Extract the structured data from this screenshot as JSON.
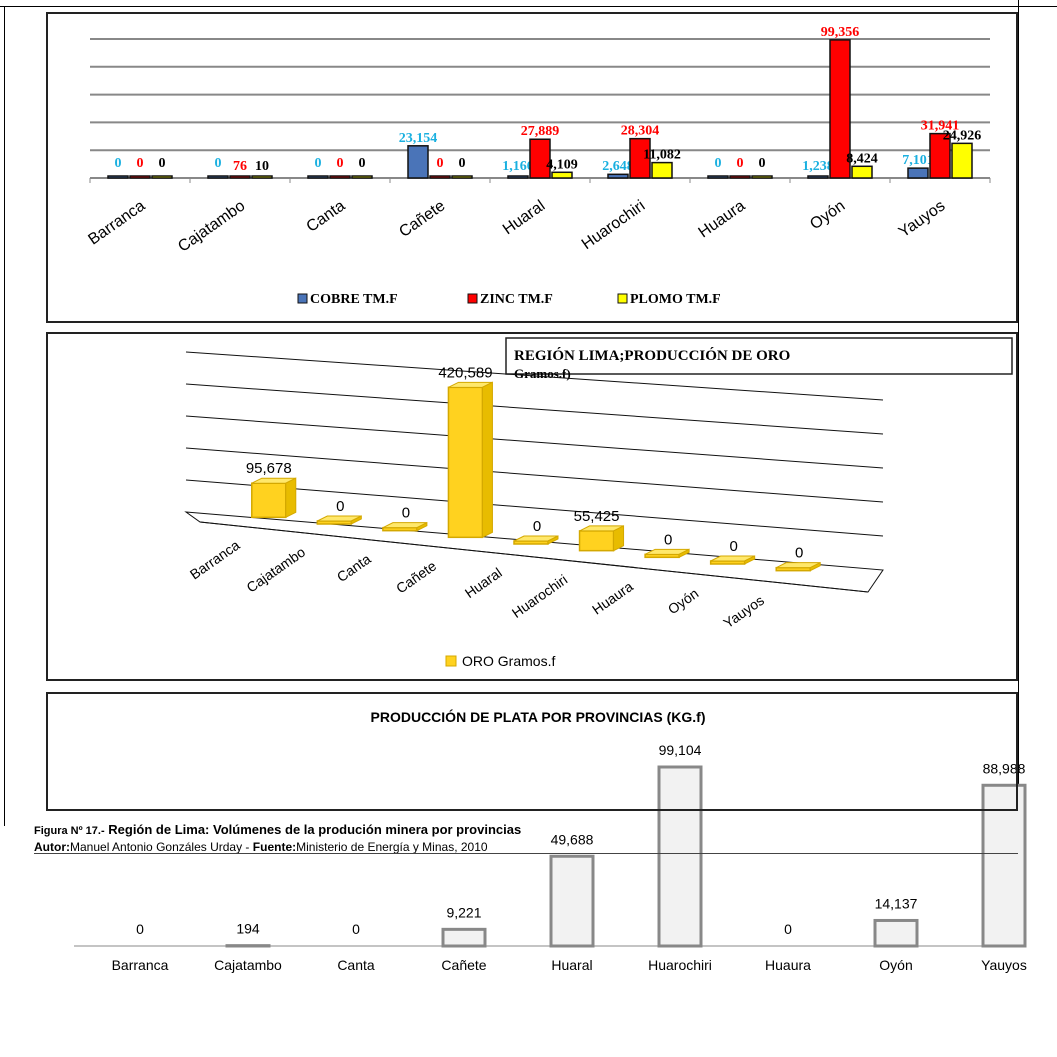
{
  "page": {
    "caption_prefix": "Figura Nº 17.-",
    "caption_title": "Región de Lima: Volúmenes de la produción minera por provincias",
    "author_label": "Autor:",
    "author_name": "Manuel Antonio Gonzáles Urday -",
    "source_label": "Fuente:",
    "source_name": "Ministerio de Energía y Minas, 2010"
  },
  "colors": {
    "cobre": "#4a74b8",
    "zinc": "#ff0000",
    "plomo": "#ffff00",
    "cobre_label": "#1ab0e0",
    "zinc_label": "#ff0000",
    "plomo_label": "#000000",
    "oro": "#ffd21f",
    "oro_dark": "#d4a800",
    "plata": "#f2f2f2",
    "plata_border": "#888888"
  },
  "chart_data": [
    {
      "type": "bar",
      "title": "",
      "categories": [
        "Barranca",
        "Cajatambo",
        "Canta",
        "Cañete",
        "Huaral",
        "Huarochiri",
        "Huaura",
        "Oyón",
        "Yauyos"
      ],
      "series": [
        {
          "name": "COBRE TM.F",
          "values": [
            0,
            0,
            0,
            23154,
            1166,
            2648,
            0,
            1238,
            7101
          ],
          "labels": [
            "0",
            "0",
            "0",
            "23,154",
            "1,166",
            "2,648",
            "0",
            "1,238",
            "7,101"
          ]
        },
        {
          "name": "ZINC TM.F",
          "values": [
            0,
            76,
            0,
            0,
            27889,
            28304,
            0,
            99356,
            31941
          ],
          "labels": [
            "0",
            "76",
            "0",
            "0",
            "27,889",
            "28,304",
            "0",
            "99,356",
            "31,941"
          ]
        },
        {
          "name": "PLOMO TM.F",
          "values": [
            0,
            10,
            0,
            0,
            4109,
            11082,
            0,
            8424,
            24926
          ],
          "labels": [
            "0",
            "10",
            "0",
            "0",
            "4,109",
            "11,082",
            "0",
            "8,424",
            "24,926"
          ]
        }
      ],
      "ylim": [
        0,
        100000
      ],
      "grid": true,
      "legend": "bottom"
    },
    {
      "type": "bar",
      "title": "REGIÓN  LIMA;PRODUCCIÓN DE ORO Gramos.f)",
      "categories": [
        "Barranca",
        "Cajatambo",
        "Canta",
        "Cañete",
        "Huaral",
        "Huarochiri",
        "Huaura",
        "Oyón",
        "Yauyos"
      ],
      "series": [
        {
          "name": "ORO Gramos.f",
          "values": [
            95678,
            0,
            0,
            420589,
            0,
            55425,
            0,
            0,
            0
          ],
          "labels": [
            "95,678",
            "0",
            "0",
            "420,589",
            "0",
            "55,425",
            "0",
            "0",
            "0"
          ]
        }
      ],
      "ylim": [
        0,
        500000
      ],
      "grid": true,
      "legend": "bottom"
    },
    {
      "type": "bar",
      "title": "PRODUCCIÓN DE PLATA POR PROVINCIAS (KG.f)",
      "categories": [
        "Barranca",
        "Cajatambo",
        "Canta",
        "Cañete",
        "Huaral",
        "Huarochiri",
        "Huaura",
        "Oyón",
        "Yauyos"
      ],
      "series": [
        {
          "name": "",
          "values": [
            0,
            194,
            0,
            9221,
            49688,
            99104,
            0,
            14137,
            88988
          ],
          "labels": [
            "0",
            "194",
            "0",
            "9,221",
            "49,688",
            "99,104",
            "0",
            "14,137",
            "88,988"
          ]
        }
      ],
      "ylim": [
        0,
        120000
      ],
      "grid": false,
      "legend": "none"
    }
  ]
}
